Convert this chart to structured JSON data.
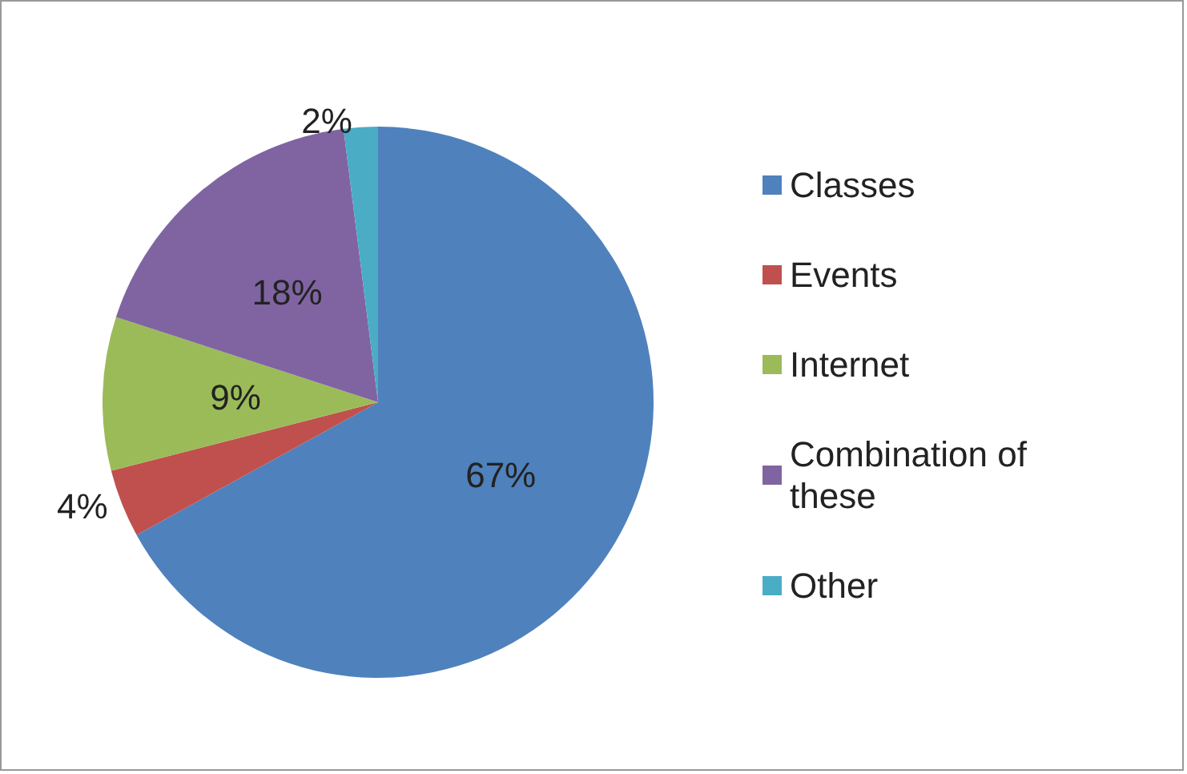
{
  "chart_data": {
    "type": "pie",
    "categories": [
      "Classes",
      "Events",
      "Internet",
      "Combination of these",
      "Other"
    ],
    "values": [
      67,
      4,
      9,
      18,
      2
    ],
    "colors": [
      "#4f81bd",
      "#c0504d",
      "#9bbb59",
      "#8064a2",
      "#4bacc6"
    ],
    "value_labels": [
      "67%",
      "4%",
      "9%",
      "18%",
      "2%"
    ],
    "legend": "right"
  }
}
